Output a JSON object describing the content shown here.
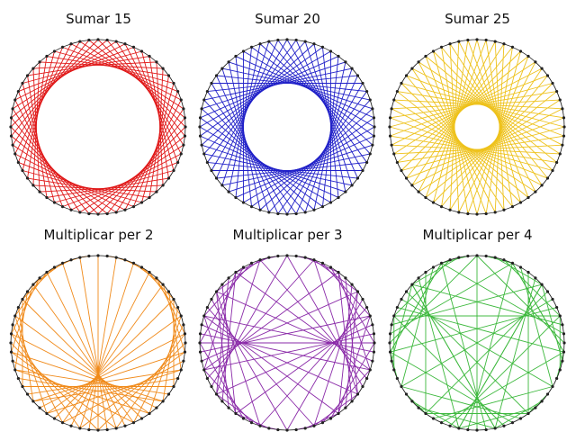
{
  "panels": [
    {
      "id": "sumar-15",
      "title": "Sumar 15",
      "op": "add",
      "k": 15,
      "color": "#e01818"
    },
    {
      "id": "sumar-20",
      "title": "Sumar 20",
      "op": "add",
      "k": 20,
      "color": "#2020c8"
    },
    {
      "id": "sumar-25",
      "title": "Sumar 25",
      "op": "add",
      "k": 25,
      "color": "#eec21c"
    },
    {
      "id": "multiplicar-2",
      "title": "Multiplicar per 2",
      "op": "mul",
      "k": 2,
      "color": "#f08a1a"
    },
    {
      "id": "multiplicar-3",
      "title": "Multiplicar per 3",
      "op": "mul",
      "k": 3,
      "color": "#8a2aa8"
    },
    {
      "id": "multiplicar-4",
      "title": "Multiplicar per 4",
      "op": "mul",
      "k": 4,
      "color": "#3cb83c"
    }
  ],
  "points_per_circle": 60,
  "point_color": "#222222",
  "circle_color": "#111111"
}
